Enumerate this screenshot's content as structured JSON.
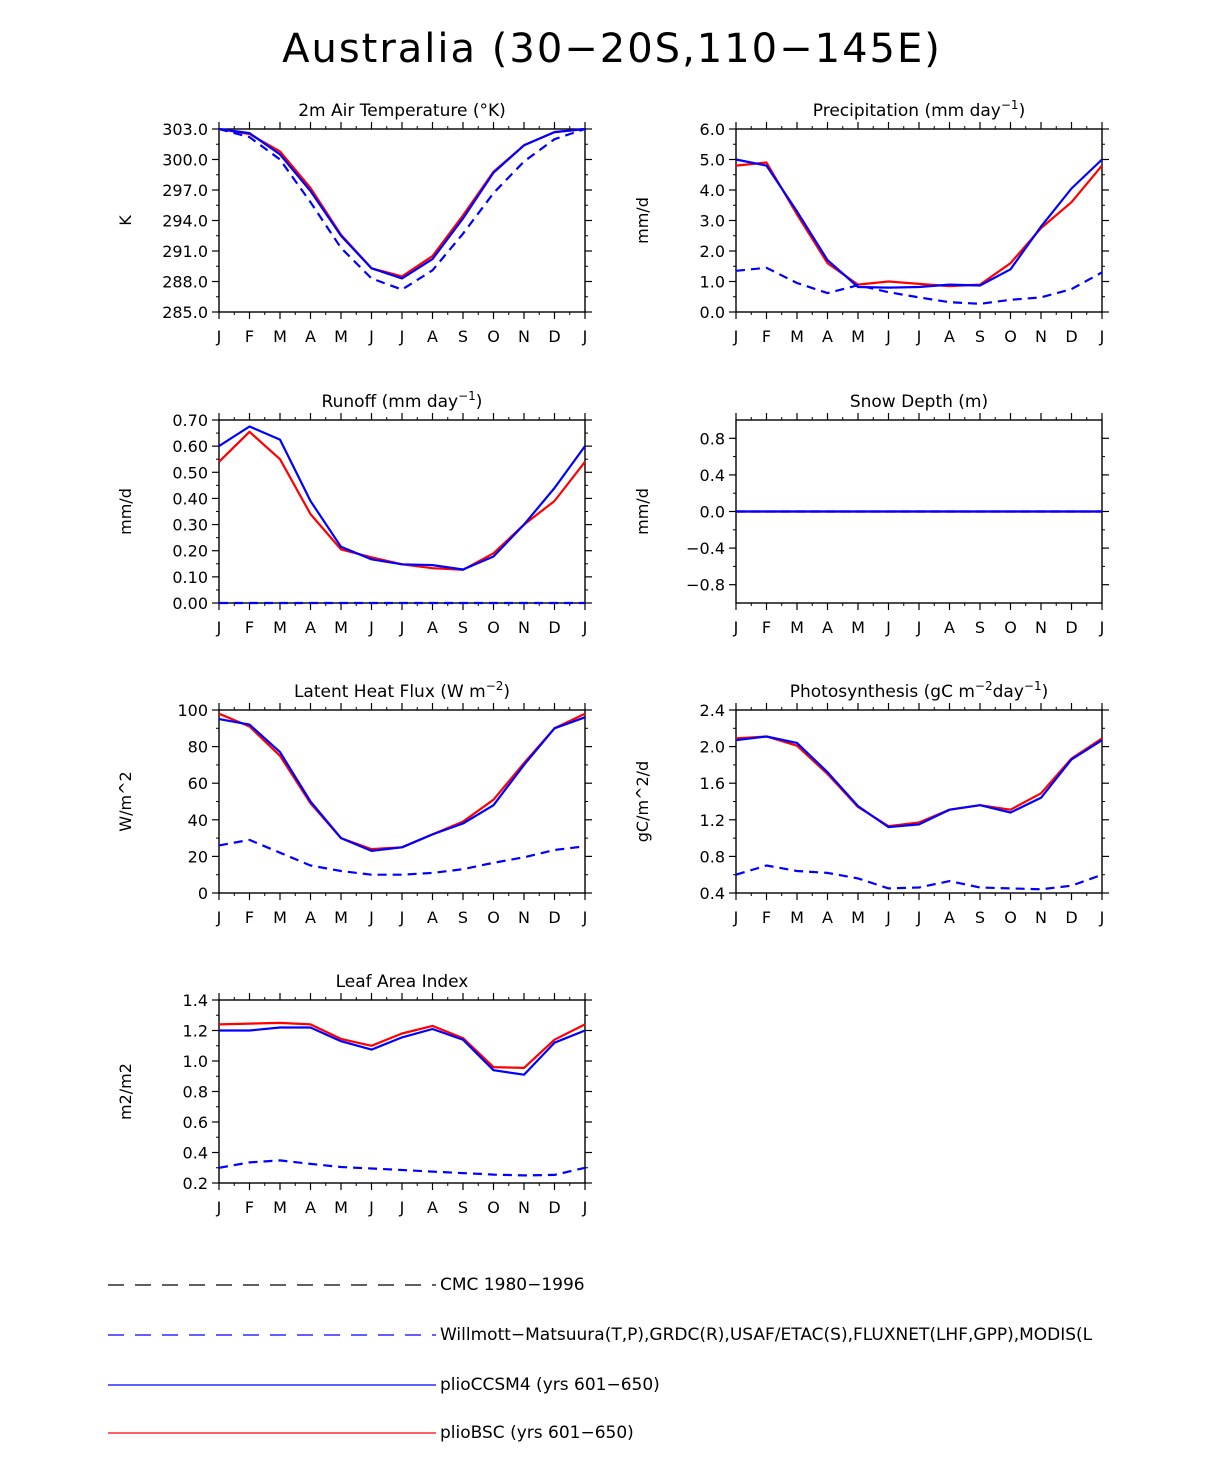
{
  "title": "Australia (30−20S,110−145E)",
  "months": [
    "J",
    "F",
    "M",
    "A",
    "M",
    "J",
    "J",
    "A",
    "S",
    "O",
    "N",
    "D",
    "J"
  ],
  "colors": {
    "red": "#ff0000",
    "blue": "#0000ff",
    "black": "#000000"
  },
  "legend": [
    {
      "label": "CMC 1980−1996",
      "color": "#000000",
      "style": "dashed"
    },
    {
      "label": "Willmott−Matsuura(T,P),GRDC(R),USAF/ETAC(S),FLUXNET(LHF,GPP),MODIS(L",
      "color": "#0000ff",
      "style": "dashed"
    },
    {
      "label": "plioCCSM4 (yrs 601−650)",
      "color": "#0000ff",
      "style": "solid"
    },
    {
      "label": "plioBSC (yrs 601−650)",
      "color": "#ff0000",
      "style": "solid"
    }
  ],
  "chart_data": [
    {
      "type": "line",
      "title": "2m Air Temperature (°K)",
      "ylabel": "K",
      "ylim": [
        285,
        303
      ],
      "yticks": [
        285,
        288,
        291,
        294,
        297,
        300,
        303
      ],
      "yticklabels": [
        "285.0",
        "288.0",
        "291.0",
        "294.0",
        "297.0",
        "300.0",
        "303.0"
      ],
      "series": [
        {
          "name": "plioBSC (yrs 601−650)",
          "color": "#ff0000",
          "style": "solid",
          "values": [
            303.0,
            302.5,
            300.8,
            297.2,
            292.6,
            289.3,
            288.5,
            290.5,
            294.5,
            298.8,
            301.4,
            302.7,
            303.0
          ]
        },
        {
          "name": "plioCCSM4 (yrs 601−650)",
          "color": "#0000ff",
          "style": "solid",
          "values": [
            303.0,
            302.6,
            300.5,
            296.9,
            292.5,
            289.3,
            288.3,
            290.2,
            294.2,
            298.7,
            301.4,
            302.7,
            303.0
          ]
        },
        {
          "name": "Willmott−Matsuura",
          "color": "#0000ff",
          "style": "dashed",
          "values": [
            303.0,
            302.2,
            300.0,
            295.8,
            291.3,
            288.3,
            287.2,
            289.1,
            292.7,
            296.7,
            299.8,
            302.0,
            303.0
          ]
        }
      ]
    },
    {
      "type": "line",
      "title": "Precipitation (mm day",
      "title_sup": "−1",
      "title_tail": ")",
      "ylabel": "mm/d",
      "ylim": [
        0,
        6
      ],
      "yticks": [
        0,
        1,
        2,
        3,
        4,
        5,
        6
      ],
      "yticklabels": [
        "0.0",
        "1.0",
        "2.0",
        "3.0",
        "4.0",
        "5.0",
        "6.0"
      ],
      "series": [
        {
          "name": "plioBSC (yrs 601−650)",
          "color": "#ff0000",
          "style": "solid",
          "values": [
            4.8,
            4.9,
            3.2,
            1.6,
            0.9,
            1.0,
            0.92,
            0.85,
            0.9,
            1.6,
            2.75,
            3.6,
            4.8
          ]
        },
        {
          "name": "plioCCSM4 (yrs 601−650)",
          "color": "#0000ff",
          "style": "solid",
          "values": [
            5.0,
            4.8,
            3.3,
            1.7,
            0.82,
            0.8,
            0.82,
            0.9,
            0.87,
            1.4,
            2.8,
            4.05,
            5.0
          ]
        },
        {
          "name": "Willmott−Matsuura",
          "color": "#0000ff",
          "style": "dashed",
          "values": [
            1.35,
            1.45,
            0.95,
            0.62,
            0.88,
            0.65,
            0.48,
            0.32,
            0.27,
            0.4,
            0.48,
            0.75,
            1.3
          ]
        }
      ]
    },
    {
      "type": "line",
      "title": "Runoff (mm day",
      "title_sup": "−1",
      "title_tail": ")",
      "ylabel": "mm/d",
      "ylim": [
        0,
        0.7
      ],
      "yticks": [
        0,
        0.1,
        0.2,
        0.3,
        0.4,
        0.5,
        0.6,
        0.7
      ],
      "yticklabels": [
        "0.00",
        "0.10",
        "0.20",
        "0.30",
        "0.40",
        "0.50",
        "0.60",
        "0.70"
      ],
      "series": [
        {
          "name": "plioBSC (yrs 601−650)",
          "color": "#ff0000",
          "style": "solid",
          "values": [
            0.54,
            0.655,
            0.55,
            0.34,
            0.205,
            0.175,
            0.148,
            0.133,
            0.127,
            0.19,
            0.3,
            0.39,
            0.54
          ]
        },
        {
          "name": "plioCCSM4 (yrs 601−650)",
          "color": "#0000ff",
          "style": "solid",
          "values": [
            0.6,
            0.675,
            0.625,
            0.39,
            0.215,
            0.167,
            0.148,
            0.145,
            0.128,
            0.178,
            0.3,
            0.44,
            0.6
          ]
        },
        {
          "name": "Willmott−Matsuura",
          "color": "#0000ff",
          "style": "dashed",
          "values": [
            0.0,
            0.0,
            0.0,
            0.0,
            0.0,
            0.0,
            0.0,
            0.0,
            0.0,
            0.0,
            0.0,
            0.0,
            0.0
          ]
        }
      ]
    },
    {
      "type": "line",
      "title": "Snow Depth (m)",
      "ylabel": "mm/d",
      "ylim": [
        -1.0,
        1.0
      ],
      "yticks": [
        -0.8,
        -0.4,
        0,
        0.4,
        0.8
      ],
      "yticklabels": [
        "−0.8",
        "−0.4",
        "0.0",
        "0.4",
        "0.8"
      ],
      "series": [
        {
          "name": "plioBSC (yrs 601−650)",
          "color": "#ff0000",
          "style": "solid",
          "values": [
            0,
            0,
            0,
            0,
            0,
            0,
            0,
            0,
            0,
            0,
            0,
            0,
            0
          ]
        },
        {
          "name": "plioCCSM4 (yrs 601−650)",
          "color": "#0000ff",
          "style": "solid",
          "values": [
            0,
            0,
            0,
            0,
            0,
            0,
            0,
            0,
            0,
            0,
            0,
            0,
            0
          ]
        },
        {
          "name": "USAF/ETAC",
          "color": "#0000ff",
          "style": "dashed",
          "values": [
            0,
            0,
            0,
            0,
            0,
            0,
            0,
            0,
            0,
            0,
            0,
            0,
            0
          ]
        }
      ]
    },
    {
      "type": "line",
      "title": "Latent Heat Flux (W m",
      "title_sup": "−2",
      "title_tail": ")",
      "ylabel": "W/m^2",
      "ylim": [
        0,
        100
      ],
      "yticks": [
        0,
        20,
        40,
        60,
        80,
        100
      ],
      "yticklabels": [
        "0",
        "20",
        "40",
        "60",
        "80",
        "100"
      ],
      "series": [
        {
          "name": "plioBSC (yrs 601−650)",
          "color": "#ff0000",
          "style": "solid",
          "values": [
            98,
            91,
            75,
            49,
            30,
            24,
            25,
            32,
            39,
            51,
            71,
            90,
            98
          ]
        },
        {
          "name": "plioCCSM4 (yrs 601−650)",
          "color": "#0000ff",
          "style": "solid",
          "values": [
            95,
            92,
            77,
            50,
            30,
            23,
            25,
            32,
            38,
            48,
            70,
            90,
            96
          ]
        },
        {
          "name": "FLUXNET",
          "color": "#0000ff",
          "style": "dashed",
          "values": [
            26,
            29,
            22,
            15,
            12,
            10,
            10,
            11,
            13,
            16.5,
            19.5,
            23.5,
            25.5
          ]
        }
      ]
    },
    {
      "type": "line",
      "title": "Photosynthesis (gC m",
      "title_sup": "−2",
      "title_mid": "day",
      "title_sup2": "−1",
      "title_tail": ")",
      "ylabel": "gC/m^2/d",
      "ylim": [
        0.4,
        2.4
      ],
      "yticks": [
        0.4,
        0.8,
        1.2,
        1.6,
        2.0,
        2.4
      ],
      "yticklabels": [
        "0.4",
        "0.8",
        "1.2",
        "1.6",
        "2.0",
        "2.4"
      ],
      "series": [
        {
          "name": "plioBSC (yrs 601−650)",
          "color": "#ff0000",
          "style": "solid",
          "values": [
            2.09,
            2.11,
            2.01,
            1.7,
            1.34,
            1.13,
            1.17,
            1.31,
            1.36,
            1.31,
            1.49,
            1.87,
            2.09
          ]
        },
        {
          "name": "plioCCSM4 (yrs 601−650)",
          "color": "#0000ff",
          "style": "solid",
          "values": [
            2.07,
            2.11,
            2.04,
            1.72,
            1.35,
            1.12,
            1.15,
            1.31,
            1.36,
            1.28,
            1.44,
            1.86,
            2.07
          ]
        },
        {
          "name": "FLUXNET",
          "color": "#0000ff",
          "style": "dashed",
          "values": [
            0.6,
            0.7,
            0.64,
            0.62,
            0.56,
            0.45,
            0.46,
            0.53,
            0.46,
            0.45,
            0.44,
            0.48,
            0.6
          ]
        }
      ]
    },
    {
      "type": "line",
      "title": "Leaf Area Index",
      "ylabel": "m2/m2",
      "ylim": [
        0.2,
        1.4
      ],
      "yticks": [
        0.2,
        0.4,
        0.6,
        0.8,
        1.0,
        1.2,
        1.4
      ],
      "yticklabels": [
        "0.2",
        "0.4",
        "0.6",
        "0.8",
        "1.0",
        "1.2",
        "1.4"
      ],
      "series": [
        {
          "name": "plioBSC (yrs 601−650)",
          "color": "#ff0000",
          "style": "solid",
          "values": [
            1.24,
            1.245,
            1.25,
            1.24,
            1.145,
            1.1,
            1.18,
            1.23,
            1.15,
            0.96,
            0.955,
            1.14,
            1.24
          ]
        },
        {
          "name": "plioCCSM4 (yrs 601−650)",
          "color": "#0000ff",
          "style": "solid",
          "values": [
            1.2,
            1.2,
            1.22,
            1.22,
            1.13,
            1.075,
            1.155,
            1.21,
            1.14,
            0.94,
            0.91,
            1.12,
            1.2
          ]
        },
        {
          "name": "MODIS",
          "color": "#0000ff",
          "style": "dashed",
          "values": [
            0.3,
            0.335,
            0.348,
            0.325,
            0.305,
            0.295,
            0.285,
            0.275,
            0.265,
            0.255,
            0.25,
            0.253,
            0.3
          ]
        }
      ]
    }
  ]
}
